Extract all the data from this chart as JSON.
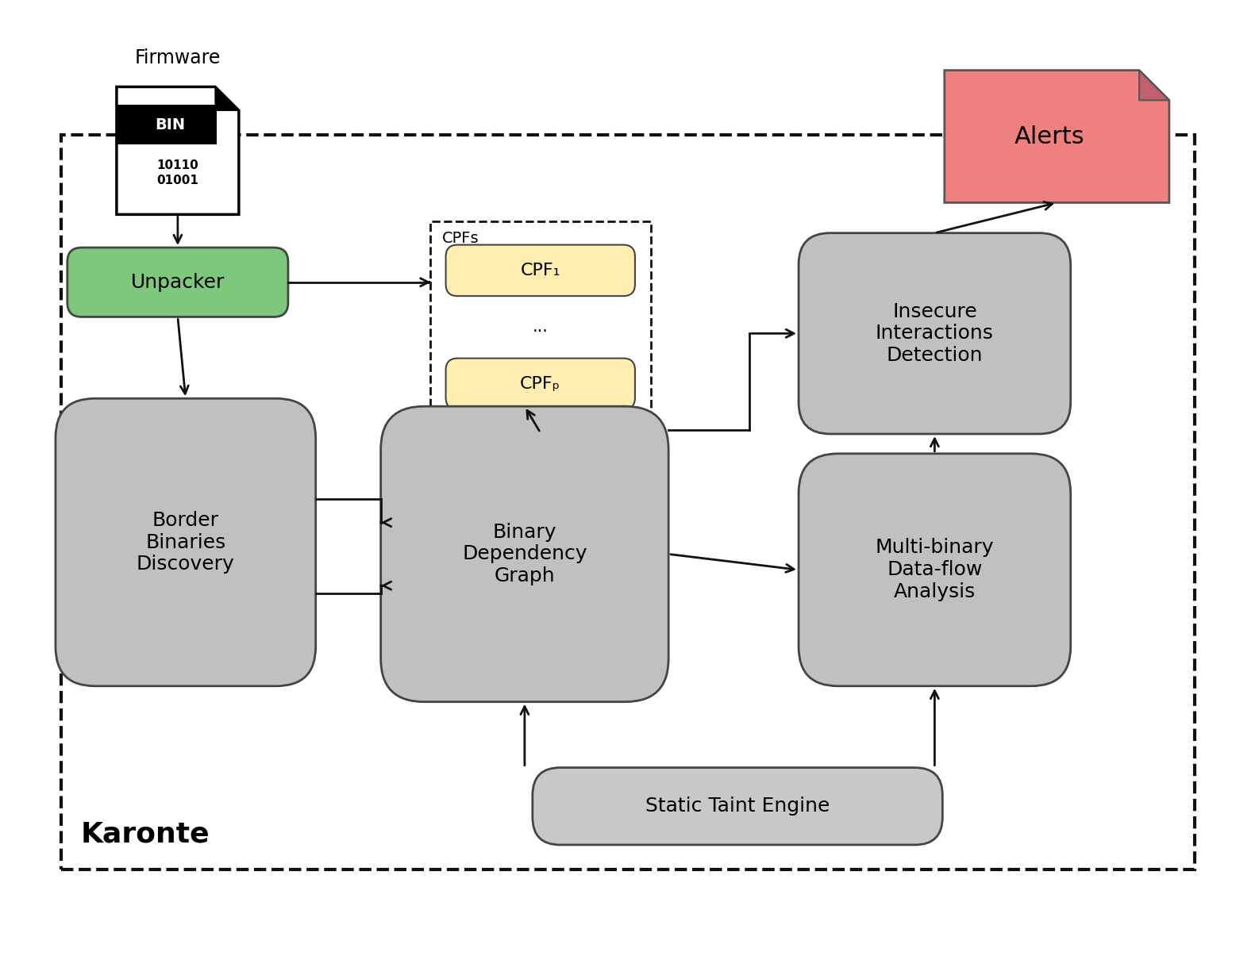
{
  "fig_width": 15.86,
  "fig_height": 12.29,
  "bg_color": "#ffffff",
  "title_text": "Karonte",
  "title_fontsize": 26,
  "firmware_label": "Firmware",
  "unpacker_label": "Unpacker",
  "unpacker_color": "#7DC87D",
  "border_label": "Border\nBinaries\nDiscovery",
  "border_color": "#C0C0C0",
  "bdg_label": "Binary\nDependency\nGraph",
  "bdg_color": "#C0C0C0",
  "cpfs_label": "CPFs",
  "cpf1_label": "CPF₁",
  "cpfp_label": "CPFₚ",
  "cpf_color": "#FFEEB0",
  "insecure_label": "Insecure\nInteractions\nDetection",
  "insecure_color": "#C0C0C0",
  "multibinary_label": "Multi-binary\nData-flow\nAnalysis",
  "multibinary_color": "#C0C0C0",
  "static_label": "Static Taint Engine",
  "static_color": "#C8C8C8",
  "alerts_label": "Alerts",
  "alerts_color": "#F08080",
  "alerts_fold_color": "#C06070",
  "dash_color": "#111111",
  "arrow_color": "#111111",
  "box_edge_color": "#444444",
  "arrow_lw": 2.0
}
